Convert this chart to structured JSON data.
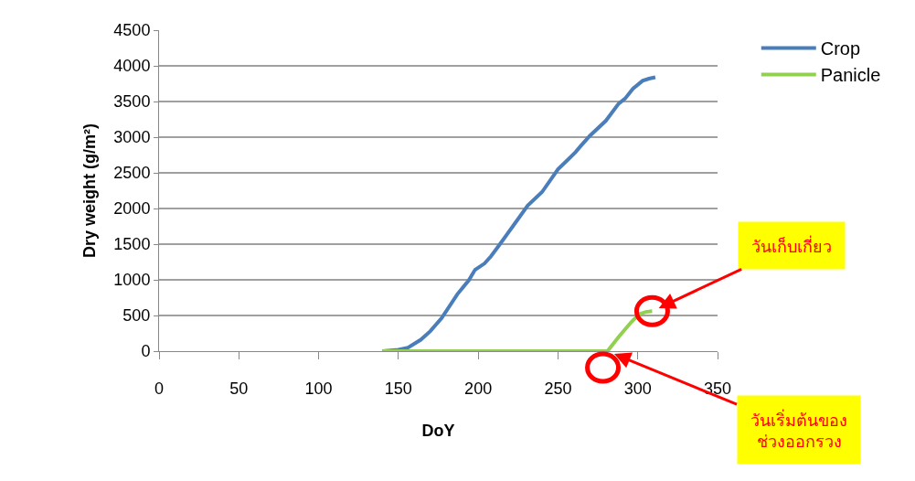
{
  "chart_data": {
    "type": "line",
    "xlabel": "DoY",
    "ylabel": "Dry weight (g/m²)",
    "xlim": [
      0,
      350
    ],
    "xticks": [
      0,
      50,
      100,
      150,
      200,
      250,
      300,
      350
    ],
    "ylim": [
      0,
      4500
    ],
    "yticks": [
      0,
      500,
      1000,
      1500,
      2000,
      2500,
      3000,
      3500,
      4000,
      4500
    ],
    "grid": "y",
    "legend": "top right",
    "marker": "none",
    "line_style": "solid",
    "series": [
      {
        "name": "Crop",
        "color": "#4a7ebb",
        "x": [
          140,
          150,
          156,
          164,
          170,
          177,
          187,
          194,
          198,
          204,
          208,
          213,
          222,
          231,
          240,
          250,
          256,
          261,
          264,
          270,
          280,
          288,
          292,
          297,
          303,
          307,
          311
        ],
        "values": [
          0,
          20,
          50,
          160,
          280,
          460,
          800,
          990,
          1140,
          1230,
          1330,
          1480,
          1760,
          2040,
          2230,
          2550,
          2680,
          2790,
          2870,
          3020,
          3230,
          3470,
          3540,
          3680,
          3790,
          3820,
          3840
        ]
      },
      {
        "name": "Panicle",
        "color": "#92d050",
        "x": [
          140,
          200,
          250,
          281,
          288,
          296,
          301,
          305,
          309
        ],
        "values": [
          0,
          0,
          0,
          0,
          200,
          410,
          520,
          550,
          560
        ]
      }
    ],
    "annotations": [
      {
        "text": "วันเก็บเกี่ยว",
        "x": 309,
        "y": 560
      },
      {
        "text": "วันเริ่มต้นของ\nช่วงออกรวง",
        "x": 281,
        "y": 0
      }
    ]
  }
}
